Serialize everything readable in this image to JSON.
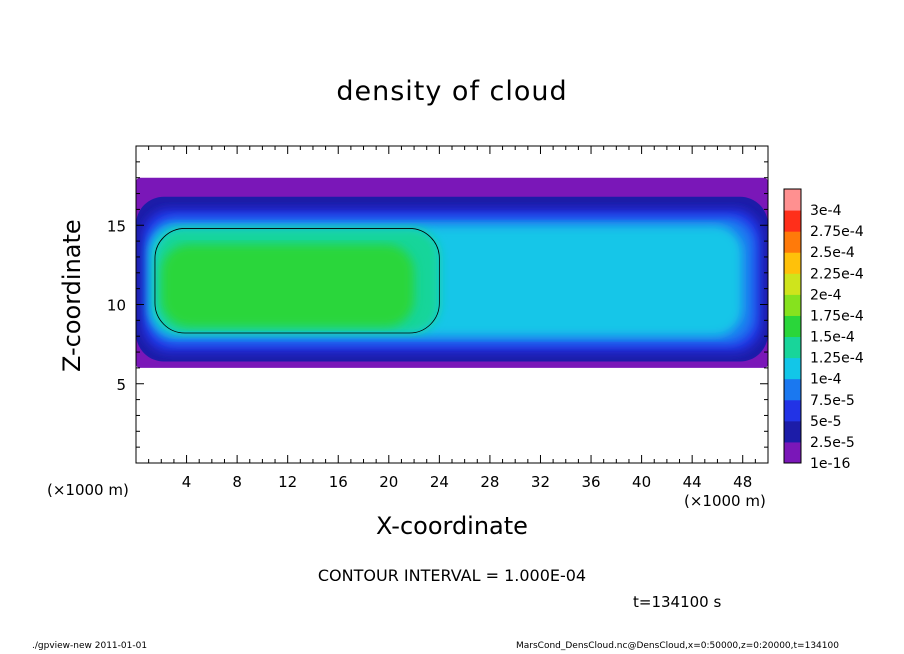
{
  "chart_data": {
    "type": "heatmap",
    "title": "density of cloud",
    "xlabel": "X-coordinate",
    "ylabel": "Z-coordinate",
    "x_unit_label": "(×1000 m)",
    "x_unit_label_right": "(×1000 m)",
    "xlim": [
      0,
      50
    ],
    "ylim": [
      0,
      20
    ],
    "x_ticks": [
      4,
      8,
      12,
      16,
      20,
      24,
      28,
      32,
      36,
      40,
      44,
      48
    ],
    "y_ticks": [
      5,
      10,
      15
    ],
    "grid": false,
    "colorbar": {
      "levels": [
        "1e-16",
        "2.5e-5",
        "5e-5",
        "7.5e-5",
        "1e-4",
        "1.25e-4",
        "1.5e-4",
        "1.75e-4",
        "2e-4",
        "2.25e-4",
        "2.5e-4",
        "2.75e-4",
        "3e-4"
      ],
      "colors": [
        "#7a17b8",
        "#1c1ca8",
        "#2233e6",
        "#1a78f0",
        "#12c6e8",
        "#18d59a",
        "#2ad63a",
        "#86e21e",
        "#cfe41c",
        "#ffc10a",
        "#ff7a0a",
        "#ff2f1a",
        "#ff9090"
      ]
    },
    "regions": [
      {
        "level": "1e-16",
        "x": [
          0,
          50
        ],
        "z": [
          6,
          18
        ]
      },
      {
        "level": "2.5e-5",
        "x": [
          0,
          50
        ],
        "z": [
          6.4,
          16.8
        ]
      },
      {
        "level": "5e-5",
        "x": [
          0.5,
          49.5
        ],
        "z": [
          7,
          16
        ]
      },
      {
        "level": "7.5e-5",
        "x": [
          1,
          49
        ],
        "z": [
          7.5,
          15.5
        ]
      },
      {
        "level": "1e-4",
        "x": [
          1,
          48
        ],
        "z": [
          8,
          15
        ]
      },
      {
        "level": "1.25e-4",
        "x": [
          1.5,
          24
        ],
        "z": [
          8.2,
          14.8
        ]
      },
      {
        "level": "1.5e-4",
        "x": [
          2,
          22
        ],
        "z": [
          8.6,
          13.8
        ]
      }
    ]
  },
  "contour_interval": "CONTOUR INTERVAL = 1.000E-04",
  "time_label": "t=134100 s",
  "footer_left": "./gpview-new  2011-01-01",
  "footer_right": "MarsCond_DensCloud.nc@DensCloud,x=0:50000,z=0:20000,t=134100"
}
